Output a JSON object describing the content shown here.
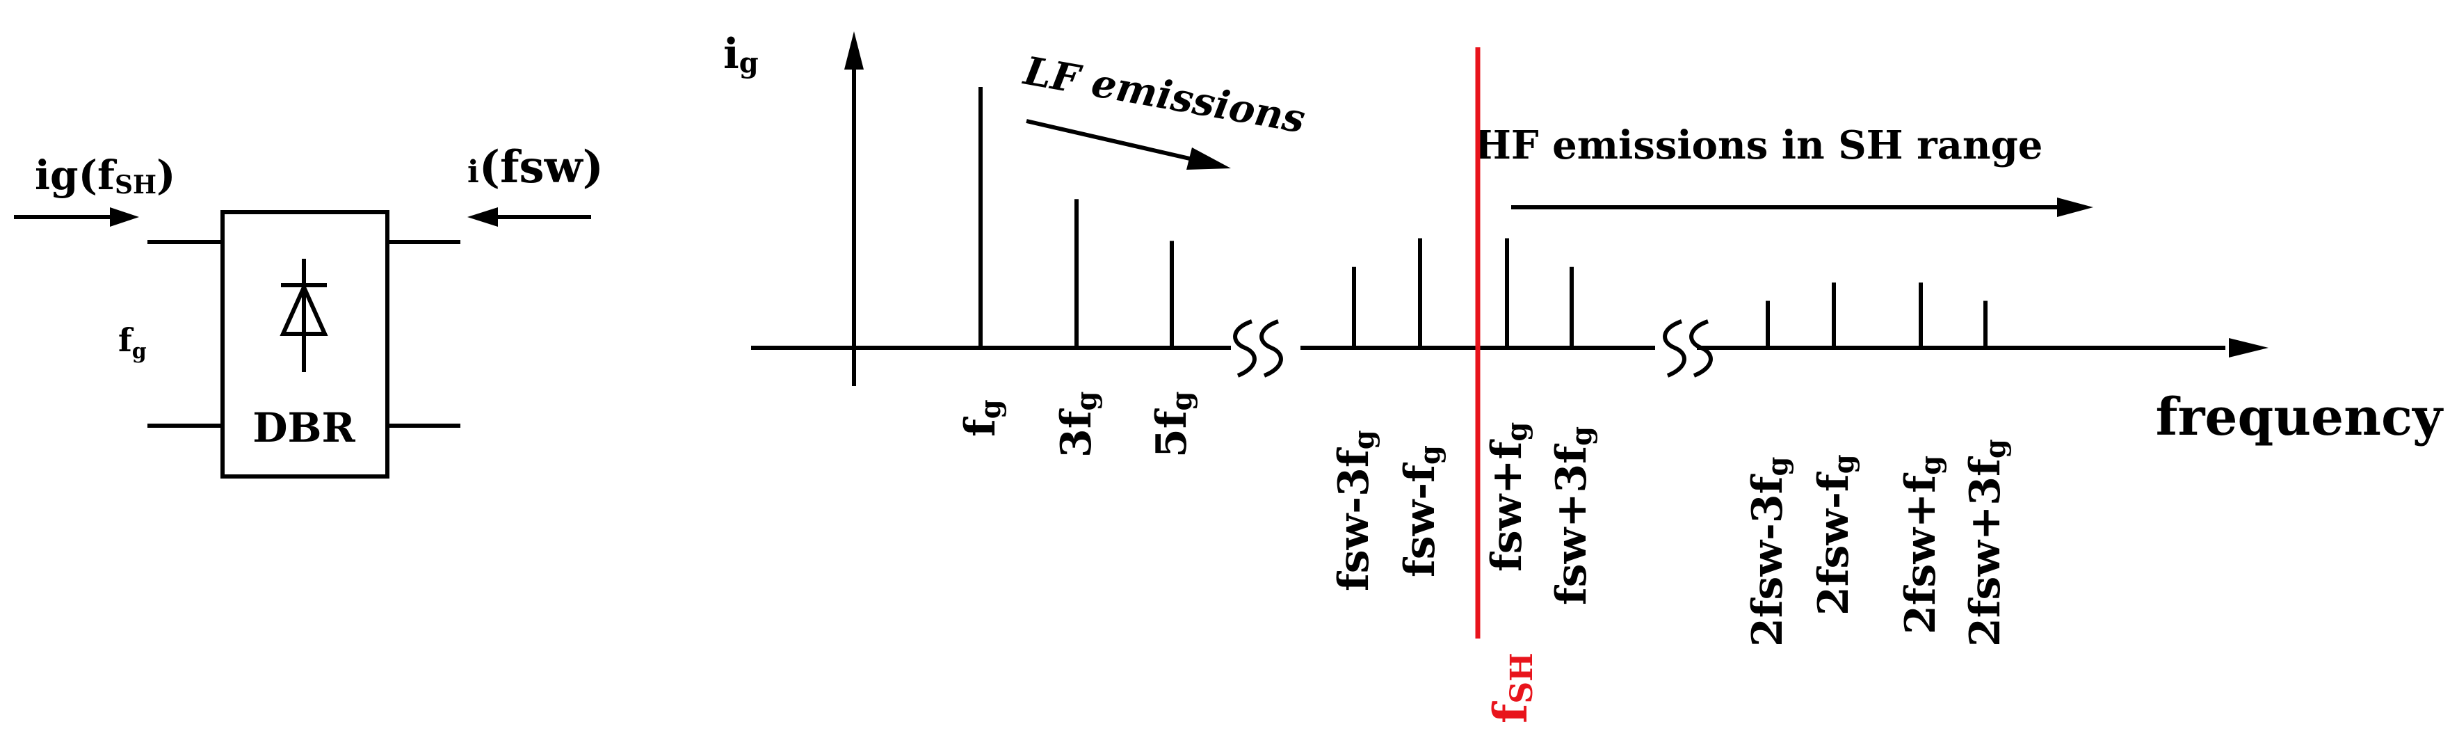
{
  "colors": {
    "ink": "#000000",
    "accent": "#e8141c",
    "background": "#ffffff"
  },
  "block": {
    "label": "DBR",
    "symbol": "diode-icon",
    "left_input_main": "ig(f",
    "left_input_sub": "SH",
    "left_input_close": ")",
    "right_input_main": "i",
    "right_input_rest": "(fsw)",
    "side_main": "f",
    "side_sub": "g"
  },
  "spectrum": {
    "y_axis_main": "i",
    "y_axis_sub": "g",
    "x_axis_label": "frequency",
    "lf_annotation": "LF emissions",
    "hf_annotation": "HF emissions in SH range",
    "sh_main": "f",
    "sh_sub": "SH",
    "lines": [
      {
        "main": "f",
        "sub": "g",
        "rest": "",
        "height": 1.0
      },
      {
        "main": "3f",
        "sub": "g",
        "rest": "",
        "height": 0.57
      },
      {
        "main": "5f",
        "sub": "g",
        "rest": "",
        "height": 0.41
      },
      {
        "main": "fsw-3f",
        "sub": "g",
        "rest": "",
        "height": 0.31
      },
      {
        "main": "fsw-f",
        "sub": "g",
        "rest": "",
        "height": 0.42
      },
      {
        "main": "fsw+f",
        "sub": "g",
        "rest": "",
        "height": 0.42
      },
      {
        "main": "fsw+3f",
        "sub": "g",
        "rest": "",
        "height": 0.31
      },
      {
        "main": "2fsw-3f",
        "sub": "g",
        "rest": "",
        "height": 0.18
      },
      {
        "main": "2fsw-f",
        "sub": "g",
        "rest": "",
        "height": 0.25
      },
      {
        "main": "2fsw+f",
        "sub": "g",
        "rest": "",
        "height": 0.25
      },
      {
        "main": "2fsw+3f",
        "sub": "g",
        "rest": "",
        "height": 0.18
      }
    ]
  }
}
